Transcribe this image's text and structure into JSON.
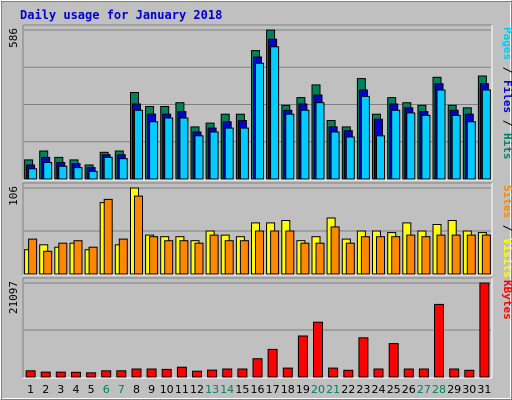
{
  "colors": {
    "background": "#c0c0c0",
    "panel": "#c0c0c0",
    "title": "#0000cc",
    "pages": "#00ccff",
    "files": "#0000cc",
    "hits": "#00805c",
    "sites": "#ff8800",
    "visits": "#ffff00",
    "kbytes": "#ff0000",
    "weekday_label": "#000000",
    "weekend_label": "#00805c",
    "gridline": "#808080"
  },
  "chart_data": [
    {
      "type": "bar",
      "title": "Daily usage for January 2018",
      "categories": [
        "1",
        "2",
        "3",
        "4",
        "5",
        "6",
        "7",
        "8",
        "9",
        "10",
        "11",
        "12",
        "13",
        "14",
        "15",
        "16",
        "17",
        "18",
        "19",
        "20",
        "21",
        "22",
        "23",
        "24",
        "25",
        "26",
        "27",
        "28",
        "29",
        "30",
        "31"
      ],
      "weekend_days": [
        "6",
        "7",
        "13",
        "14",
        "20",
        "21",
        "27",
        "28"
      ],
      "panels": [
        {
          "name": "pages-files-hits",
          "y_max_label": "586",
          "ylim": [
            0,
            586
          ],
          "gridlines": true,
          "side_labels": [
            {
              "text": "Pages",
              "color": "#00ccff"
            },
            {
              "text": " / ",
              "color": "#000000"
            },
            {
              "text": "Files",
              "color": "#0000cc"
            },
            {
              "text": " / ",
              "color": "#000000"
            },
            {
              "text": "Hits",
              "color": "#00805c"
            }
          ],
          "series": [
            {
              "key": "hits",
              "color": "#00805c",
              "values": [
                75,
                110,
                85,
                75,
                55,
                105,
                110,
                340,
                285,
                285,
                300,
                205,
                220,
                255,
                255,
                505,
                586,
                290,
                320,
                370,
                230,
                205,
                395,
                255,
                320,
                300,
                290,
                400,
                290,
                280,
                405
              ]
            },
            {
              "key": "files",
              "color": "#0000cc",
              "values": [
                55,
                85,
                65,
                60,
                45,
                95,
                95,
                295,
                255,
                255,
                265,
                185,
                200,
                225,
                230,
                480,
                550,
                270,
                295,
                330,
                205,
                190,
                350,
                235,
                295,
                280,
                265,
                375,
                270,
                255,
                375
              ]
            },
            {
              "key": "pages",
              "color": "#00ccff",
              "values": [
                40,
                65,
                50,
                45,
                30,
                85,
                80,
                270,
                225,
                240,
                240,
                170,
                185,
                200,
                200,
                455,
                520,
                255,
                270,
                300,
                185,
                165,
                325,
                170,
                270,
                260,
                250,
                350,
                250,
                225,
                350
              ]
            }
          ]
        },
        {
          "name": "sites-visits",
          "y_max_label": "106",
          "ylim": [
            0,
            106
          ],
          "gridlines": true,
          "side_labels": [
            {
              "text": "Sites",
              "color": "#ff8800"
            },
            {
              "text": " / ",
              "color": "#000000"
            },
            {
              "text": "Visits",
              "color": "#ffff00"
            }
          ],
          "series": [
            {
              "key": "visits",
              "color": "#ffff00",
              "values": [
                30,
                36,
                33,
                38,
                30,
                88,
                36,
                106,
                48,
                46,
                46,
                41,
                53,
                48,
                46,
                63,
                63,
                66,
                41,
                46,
                69,
                43,
                53,
                53,
                51,
                63,
                53,
                61,
                66,
                53,
                51
              ]
            },
            {
              "key": "sites",
              "color": "#ff8800",
              "values": [
                43,
                28,
                38,
                41,
                33,
                92,
                43,
                96,
                46,
                41,
                41,
                38,
                48,
                41,
                41,
                53,
                53,
                53,
                38,
                38,
                58,
                38,
                46,
                46,
                46,
                48,
                46,
                48,
                48,
                48,
                48
              ]
            }
          ]
        },
        {
          "name": "kbytes",
          "y_max_label": "21097",
          "ylim": [
            0,
            21097
          ],
          "gridlines": true,
          "side_labels": [
            {
              "text": "KBytes",
              "color": "#ff0000"
            }
          ],
          "series": [
            {
              "key": "kbytes",
              "color": "#ff0000",
              "values": [
                1400,
                1100,
                1100,
                1050,
                950,
                1400,
                1400,
                1800,
                1800,
                1700,
                2200,
                1300,
                1550,
                1800,
                1800,
                4100,
                6200,
                2000,
                9200,
                12300,
                2000,
                1500,
                8800,
                1800,
                7500,
                1800,
                1800,
                16300,
                1800,
                1500,
                21097
              ]
            }
          ]
        }
      ]
    }
  ]
}
